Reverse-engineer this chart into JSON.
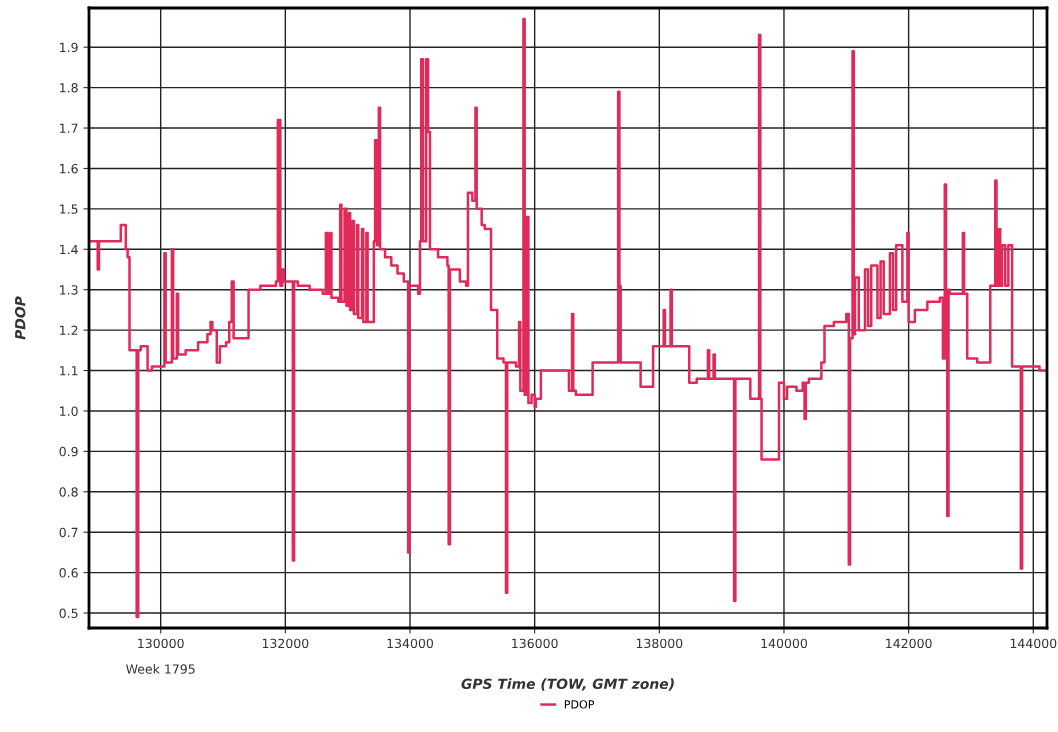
{
  "chart_data": {
    "type": "step",
    "xlabel": "GPS Time (TOW, GMT zone)",
    "ylabel": "PDOP",
    "annotations": [
      "Week 1795"
    ],
    "xlim": [
      128850,
      144220
    ],
    "ylim": [
      0.463,
      1.997
    ],
    "xticks": [
      130000,
      132000,
      134000,
      136000,
      138000,
      140000,
      142000,
      144000
    ],
    "yticks": [
      0.5,
      0.6,
      0.7,
      0.8,
      0.9,
      {
        "value": 1.0,
        "label": "1.0"
      },
      1.1,
      1.2,
      1.3,
      1.4,
      1.5,
      1.6,
      1.7,
      1.8,
      1.9
    ],
    "grid": true,
    "legend": "bottom",
    "line_style": "solid",
    "marker": "none",
    "series": [
      {
        "name": "PDOP",
        "color": "#e02a5a",
        "x": [
          128850,
          128990,
          129010,
          129360,
          129440,
          129470,
          129500,
          129615,
          129640,
          129680,
          129790,
          129860,
          130060,
          130080,
          130180,
          130200,
          130260,
          130280,
          130400,
          130600,
          130750,
          130800,
          130830,
          130900,
          130950,
          131050,
          131100,
          131140,
          131170,
          131410,
          131600,
          131850,
          131880,
          131920,
          131950,
          131980,
          132120,
          132140,
          132200,
          132390,
          132600,
          132650,
          132680,
          132720,
          132740,
          132850,
          132880,
          132900,
          132950,
          132980,
          133020,
          133040,
          133080,
          133100,
          133150,
          133170,
          133230,
          133250,
          133300,
          133320,
          133420,
          133440,
          133470,
          133500,
          133520,
          133600,
          133700,
          133800,
          133900,
          133970,
          133990,
          134130,
          134160,
          134180,
          134210,
          134260,
          134290,
          134320,
          134450,
          134600,
          134620,
          134640,
          134800,
          134900,
          134930,
          135000,
          135050,
          135070,
          135150,
          135200,
          135300,
          135400,
          135500,
          135540,
          135560,
          135700,
          135750,
          135770,
          135820,
          135840,
          135880,
          135900,
          135950,
          136000,
          136020,
          136100,
          136550,
          136600,
          136620,
          136660,
          136930,
          137340,
          137360,
          137380,
          137700,
          137900,
          138070,
          138090,
          138180,
          138200,
          138480,
          138600,
          138780,
          138800,
          138870,
          138890,
          139000,
          139200,
          139220,
          139460,
          139600,
          139620,
          139640,
          139920,
          140000,
          140050,
          140200,
          140300,
          140330,
          140350,
          140400,
          140600,
          140650,
          140800,
          141000,
          141040,
          141060,
          141100,
          141120,
          141140,
          141200,
          141300,
          141350,
          141400,
          141500,
          141550,
          141600,
          141700,
          141750,
          141800,
          141900,
          141980,
          142000,
          142100,
          142300,
          142500,
          142550,
          142580,
          142600,
          142620,
          142640,
          142660,
          142870,
          142890,
          142940,
          143100,
          143150,
          143310,
          143390,
          143410,
          143450,
          143470,
          143500,
          143550,
          143600,
          143660,
          143800,
          143820,
          144100,
          144220
        ],
        "values": [
          1.42,
          1.35,
          1.42,
          1.46,
          1.4,
          1.38,
          1.15,
          0.49,
          1.15,
          1.16,
          1.1,
          1.11,
          1.39,
          1.12,
          1.4,
          1.13,
          1.29,
          1.14,
          1.15,
          1.17,
          1.19,
          1.22,
          1.2,
          1.12,
          1.16,
          1.17,
          1.22,
          1.32,
          1.18,
          1.3,
          1.31,
          1.32,
          1.72,
          1.31,
          1.35,
          1.32,
          0.63,
          1.32,
          1.31,
          1.3,
          1.29,
          1.44,
          1.29,
          1.44,
          1.28,
          1.27,
          1.51,
          1.27,
          1.5,
          1.26,
          1.49,
          1.25,
          1.47,
          1.24,
          1.46,
          1.23,
          1.45,
          1.22,
          1.44,
          1.22,
          1.42,
          1.67,
          1.41,
          1.75,
          1.4,
          1.38,
          1.36,
          1.34,
          1.32,
          0.65,
          1.31,
          1.29,
          1.42,
          1.87,
          1.42,
          1.87,
          1.69,
          1.4,
          1.38,
          1.36,
          0.67,
          1.35,
          1.32,
          1.31,
          1.54,
          1.52,
          1.75,
          1.5,
          1.46,
          1.45,
          1.25,
          1.13,
          1.12,
          0.55,
          1.12,
          1.11,
          1.22,
          1.05,
          1.97,
          1.04,
          1.48,
          1.02,
          1.04,
          1.01,
          1.03,
          1.1,
          1.05,
          1.24,
          1.05,
          1.04,
          1.12,
          1.79,
          1.31,
          1.12,
          1.06,
          1.16,
          1.25,
          1.16,
          1.3,
          1.16,
          1.07,
          1.08,
          1.15,
          1.08,
          1.14,
          1.08,
          1.08,
          0.53,
          1.08,
          1.03,
          1.93,
          1.03,
          0.88,
          1.07,
          1.03,
          1.06,
          1.05,
          1.07,
          0.98,
          1.07,
          1.08,
          1.12,
          1.21,
          1.22,
          1.24,
          0.62,
          1.18,
          1.89,
          1.19,
          1.33,
          1.2,
          1.35,
          1.21,
          1.36,
          1.23,
          1.37,
          1.24,
          1.39,
          1.25,
          1.41,
          1.27,
          1.44,
          1.22,
          1.25,
          1.27,
          1.28,
          1.13,
          1.56,
          1.3,
          0.74,
          1.3,
          1.29,
          1.44,
          1.29,
          1.13,
          1.12,
          1.12,
          1.31,
          1.57,
          1.31,
          1.45,
          1.31,
          1.41,
          1.31,
          1.41,
          1.11,
          0.61,
          1.11,
          1.1,
          1.1
        ]
      }
    ]
  }
}
